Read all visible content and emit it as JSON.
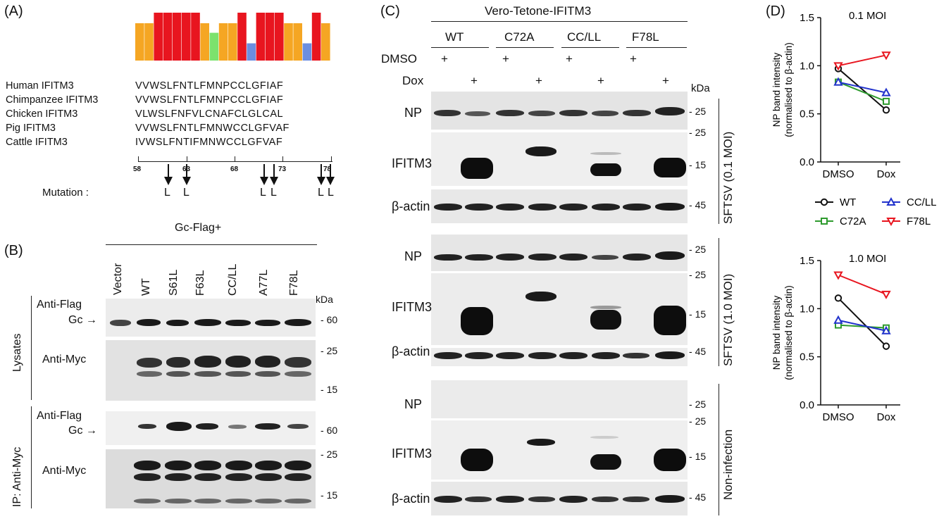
{
  "panels": {
    "A": {
      "label": "(A)",
      "logo_colors": [
        "#f5a623",
        "#f5a623",
        "#e8151f",
        "#e8151f",
        "#e8151f",
        "#e8151f",
        "#e8151f",
        "#f5a623",
        "#7ce26d",
        "#f5a623",
        "#f5a623",
        "#e8151f",
        "#6b8ee0",
        "#e8151f",
        "#e8151f",
        "#e8151f",
        "#f5a623",
        "#f5a623",
        "#6b8ee0",
        "#e8151f",
        "#f5a623"
      ],
      "logo_heights": [
        0.78,
        0.78,
        1.0,
        1.0,
        1.0,
        1.0,
        1.0,
        0.78,
        0.58,
        0.78,
        0.78,
        1.0,
        0.36,
        1.0,
        1.0,
        1.0,
        0.78,
        0.78,
        0.36,
        1.0,
        0.78
      ],
      "species": [
        "Human IFITM3",
        "Chimpanzee IFITM3",
        "Chicken IFITM3",
        "Pig IFITM3",
        "Cattle IFITM3"
      ],
      "sequences": [
        "VVWSLFNTLFMNPCCLGFIAF",
        "VVWSLFNTLFMNPCCLGFIAF",
        "VLWSLFNFVLCNAFCLGLCAL",
        "VVWSLFNTLFMNWCCLGFVAF",
        "IVWSLFNTIFMNWCCLGFVAF"
      ],
      "ruler_ticks": [
        "58",
        "63",
        "68",
        "73",
        "78"
      ],
      "mutation_label": "Mutation :",
      "mutation_letter": "L"
    },
    "B": {
      "label": "(B)",
      "header": "Gc-Flag+",
      "lanes": [
        "Vector",
        "WT",
        "S61L",
        "F63L",
        "CC/LL",
        "A77L",
        "F78L"
      ],
      "kda": "kDa",
      "lysates_label": "Lysates",
      "ip_label": "IP: Anti-Myc",
      "anti_flag": "Anti-Flag",
      "gc": "Gc",
      "anti_myc": "Anti-Myc",
      "markers": {
        "m60": "60",
        "m25": "25",
        "m15": "15"
      }
    },
    "C": {
      "label": "(C)",
      "header": "Vero-Tetone-IFITM3",
      "groups": [
        "WT",
        "C72A",
        "CC/LL",
        "F78L"
      ],
      "dmso": "DMSO",
      "dox": "Dox",
      "plus": "+",
      "kda": "kDa",
      "rows": {
        "np": "NP",
        "ifitm3": "IFITM3",
        "actin": "β-actin"
      },
      "sections": [
        "SFTSV (0.1 MOI)",
        "SFTSV (1.0 MOI)",
        "Non-infection"
      ],
      "markers": {
        "m25": "25",
        "m15": "15",
        "m45": "45"
      }
    },
    "D": {
      "label": "(D)"
    }
  },
  "chart_data": [
    {
      "type": "line",
      "title": "0.1 MOI",
      "categories": [
        "DMSO",
        "Dox"
      ],
      "ylabel": "NP band intensity\n(normalised to β-actin)",
      "ylabel_line1": "NP band intensity",
      "ylabel_line2": "(normalised to β-actin)",
      "ylim": [
        0,
        1.5
      ],
      "yticks": [
        "0.0",
        "0.5",
        "1.0",
        "1.5"
      ],
      "series": [
        {
          "name": "WT",
          "values": [
            0.97,
            0.54
          ],
          "color": "#111111",
          "marker": "circle"
        },
        {
          "name": "C72A",
          "values": [
            0.83,
            0.63
          ],
          "color": "#2e9b2e",
          "marker": "square"
        },
        {
          "name": "CC/LL",
          "values": [
            0.83,
            0.72
          ],
          "color": "#2233cc",
          "marker": "triangle-up"
        },
        {
          "name": "F78L",
          "values": [
            1.0,
            1.11
          ],
          "color": "#e8151f",
          "marker": "triangle-down"
        }
      ]
    },
    {
      "type": "line",
      "title": "1.0 MOI",
      "categories": [
        "DMSO",
        "Dox"
      ],
      "ylabel": "NP band intensity\n(normalised to β-actin)",
      "ylabel_line1": "NP band intensity",
      "ylabel_line2": "(normalised to β-actin)",
      "ylim": [
        0,
        1.5
      ],
      "yticks": [
        "0.0",
        "0.5",
        "1.0",
        "1.5"
      ],
      "series": [
        {
          "name": "WT",
          "values": [
            1.11,
            0.61
          ],
          "color": "#111111",
          "marker": "circle"
        },
        {
          "name": "C72A",
          "values": [
            0.83,
            0.8
          ],
          "color": "#2e9b2e",
          "marker": "square"
        },
        {
          "name": "CC/LL",
          "values": [
            0.88,
            0.77
          ],
          "color": "#2233cc",
          "marker": "triangle-up"
        },
        {
          "name": "F78L",
          "values": [
            1.35,
            1.15
          ],
          "color": "#e8151f",
          "marker": "triangle-down"
        }
      ]
    }
  ]
}
